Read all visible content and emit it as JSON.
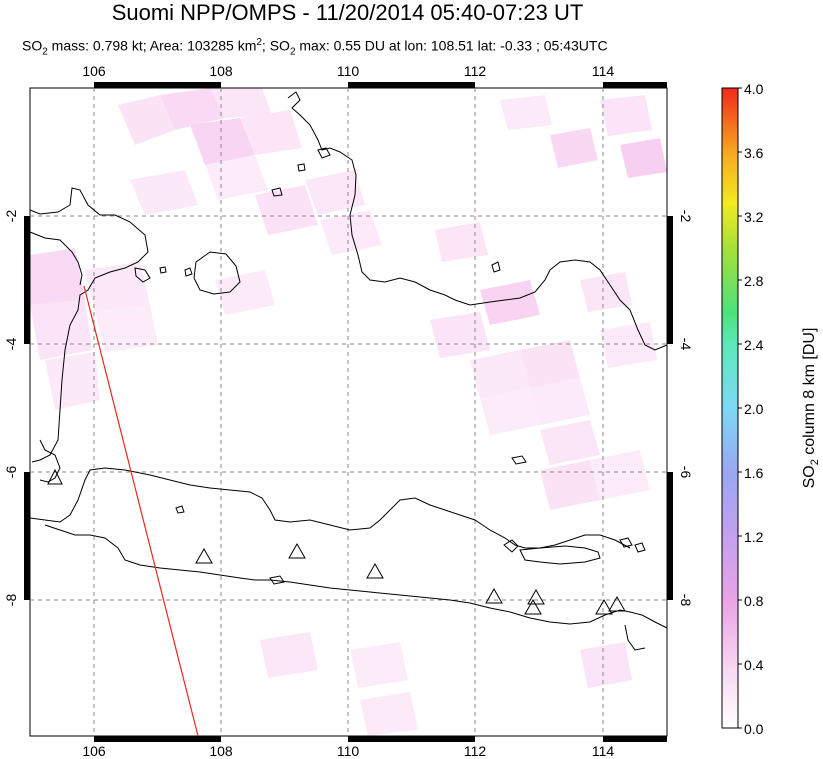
{
  "header": {
    "title": "Suomi NPP/OMPS - 11/20/2014 05:40-07:23 UT",
    "subtitle_prefix": "SO",
    "subtitle_sub": "2",
    "subtitle_text1": " mass: 0.798 kt; Area: 103285 km",
    "subtitle_sup": "2",
    "subtitle_text2": "; SO",
    "subtitle_sub2": "2",
    "subtitle_text3": " max: 0.55 DU at lon: 108.51 lat: -0.33 ; 05:43UTC"
  },
  "map": {
    "lon_ticks": [
      "106",
      "108",
      "110",
      "112",
      "114"
    ],
    "lat_ticks_left": [
      "-2",
      "-4",
      "-6",
      "-8"
    ],
    "lat_ticks_right": [
      "-2",
      "-4",
      "-6",
      "-8"
    ],
    "lon_range": [
      105,
      115
    ],
    "lat_range": [
      -10.2,
      -0.1
    ],
    "line_color": "#e8281e",
    "volcano_marker": "triangle-icon"
  },
  "colorbar": {
    "label_prefix": "SO",
    "label_sub": "2",
    "label_suffix": " column 8 km [DU]",
    "ticks": [
      "4.0",
      "3.6",
      "3.2",
      "2.8",
      "2.4",
      "2.0",
      "1.6",
      "1.2",
      "0.8",
      "0.4",
      "0.0"
    ],
    "colors": [
      "#ffffff",
      "#f7c8ee",
      "#e38ce0",
      "#b58de8",
      "#8aa6f2",
      "#6fe6f5",
      "#4ee07a",
      "#9fe03a",
      "#f3ea22",
      "#f7a623",
      "#f0391d"
    ]
  }
}
